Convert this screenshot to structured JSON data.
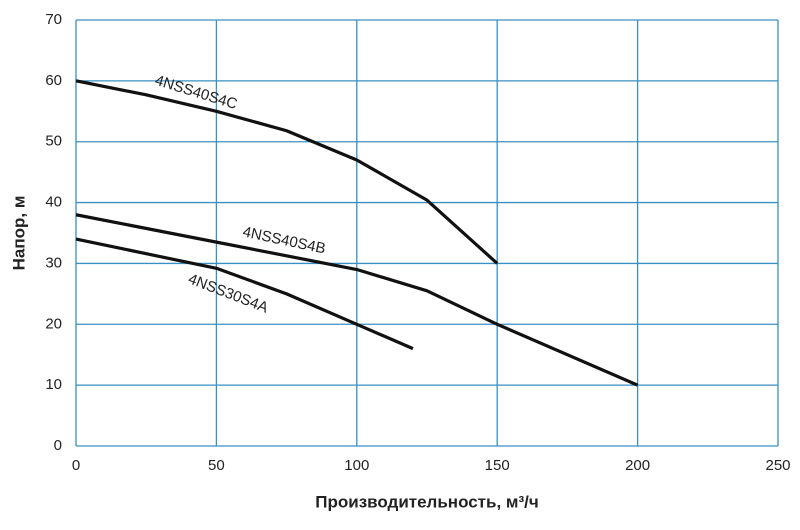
{
  "chart_data": {
    "type": "line",
    "xlabel": "Производительность, м³/ч",
    "ylabel": "Напор, м",
    "xlim": [
      0,
      250
    ],
    "xticks": [
      0,
      50,
      100,
      150,
      200,
      250
    ],
    "ylim": [
      0,
      70
    ],
    "yticks": [
      0,
      10,
      20,
      30,
      40,
      50,
      60,
      70
    ],
    "grid": true,
    "grid_color": "#3a8fc4",
    "series": [
      {
        "name": "4NSS40S4C",
        "color": "#111111",
        "x": [
          0,
          25,
          50,
          75,
          100,
          125,
          150
        ],
        "values": [
          60,
          57.7,
          55,
          51.8,
          47,
          40.4,
          30
        ]
      },
      {
        "name": "4NSS40S4B",
        "color": "#111111",
        "x": [
          0,
          50,
          100,
          125,
          150,
          200
        ],
        "values": [
          38,
          33.5,
          29,
          25.5,
          20,
          10
        ]
      },
      {
        "name": "4NSS30S4A",
        "color": "#111111",
        "x": [
          0,
          50,
          75,
          100,
          120
        ],
        "values": [
          34,
          29.2,
          25,
          20,
          16
        ]
      }
    ]
  }
}
